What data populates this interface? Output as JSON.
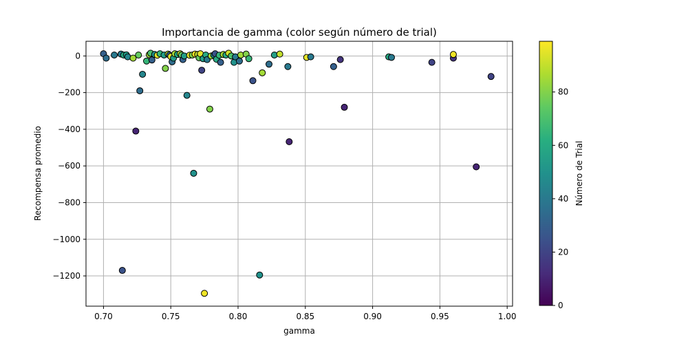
{
  "chart_data": {
    "type": "scatter",
    "title": "Importancia de gamma (color según número de trial)",
    "xlabel": "gamma",
    "ylabel": "Recompensa promedio",
    "xlim": [
      0.687,
      1.004
    ],
    "ylim": [
      -1365,
      80
    ],
    "xticks": [
      0.7,
      0.75,
      0.8,
      0.85,
      0.9,
      0.95,
      1.0
    ],
    "xtick_labels": [
      "0.70",
      "0.75",
      "0.80",
      "0.85",
      "0.90",
      "0.95",
      "1.00"
    ],
    "yticks": [
      0,
      -200,
      -400,
      -600,
      -800,
      -1000,
      -1200
    ],
    "ytick_labels": [
      "0",
      "−200",
      "−400",
      "−600",
      "−800",
      "−1000",
      "−1200"
    ],
    "grid": true,
    "colormap": "viridis",
    "colorbar": {
      "label": "Número de Trial",
      "range": [
        0,
        99
      ],
      "ticks": [
        0,
        20,
        40,
        60,
        80
      ],
      "tick_labels": [
        "0",
        "20",
        "40",
        "60",
        "80"
      ]
    },
    "points": [
      {
        "x": 0.7,
        "y": 12,
        "trial": 30
      },
      {
        "x": 0.702,
        "y": -12,
        "trial": 35
      },
      {
        "x": 0.708,
        "y": 5,
        "trial": 40
      },
      {
        "x": 0.713,
        "y": 10,
        "trial": 40
      },
      {
        "x": 0.714,
        "y": -1170,
        "trial": 25
      },
      {
        "x": 0.715,
        "y": 5,
        "trial": 60
      },
      {
        "x": 0.717,
        "y": 6,
        "trial": 55
      },
      {
        "x": 0.718,
        "y": -5,
        "trial": 45
      },
      {
        "x": 0.722,
        "y": -12,
        "trial": 85
      },
      {
        "x": 0.724,
        "y": -410,
        "trial": 10
      },
      {
        "x": 0.726,
        "y": 5,
        "trial": 75
      },
      {
        "x": 0.727,
        "y": -190,
        "trial": 35
      },
      {
        "x": 0.729,
        "y": -100,
        "trial": 45
      },
      {
        "x": 0.732,
        "y": -28,
        "trial": 65
      },
      {
        "x": 0.734,
        "y": 7,
        "trial": 85
      },
      {
        "x": 0.735,
        "y": 15,
        "trial": 70
      },
      {
        "x": 0.736,
        "y": -22,
        "trial": 30
      },
      {
        "x": 0.738,
        "y": 8,
        "trial": 50
      },
      {
        "x": 0.74,
        "y": 4,
        "trial": 95
      },
      {
        "x": 0.742,
        "y": 12,
        "trial": 65
      },
      {
        "x": 0.745,
        "y": 5,
        "trial": 55
      },
      {
        "x": 0.746,
        "y": -68,
        "trial": 80
      },
      {
        "x": 0.748,
        "y": 10,
        "trial": 90
      },
      {
        "x": 0.749,
        "y": 5,
        "trial": 30
      },
      {
        "x": 0.75,
        "y": -3,
        "trial": 95
      },
      {
        "x": 0.751,
        "y": -32,
        "trial": 35
      },
      {
        "x": 0.752,
        "y": -12,
        "trial": 55
      },
      {
        "x": 0.753,
        "y": 12,
        "trial": 85
      },
      {
        "x": 0.755,
        "y": 8,
        "trial": 60
      },
      {
        "x": 0.757,
        "y": 12,
        "trial": 90
      },
      {
        "x": 0.758,
        "y": 5,
        "trial": 75
      },
      {
        "x": 0.759,
        "y": -20,
        "trial": 30
      },
      {
        "x": 0.76,
        "y": 0,
        "trial": 55
      },
      {
        "x": 0.762,
        "y": -215,
        "trial": 45
      },
      {
        "x": 0.764,
        "y": 4,
        "trial": 95
      },
      {
        "x": 0.766,
        "y": 5,
        "trial": 80
      },
      {
        "x": 0.767,
        "y": -640,
        "trial": 50
      },
      {
        "x": 0.768,
        "y": 10,
        "trial": 98
      },
      {
        "x": 0.77,
        "y": 8,
        "trial": 90
      },
      {
        "x": 0.771,
        "y": -10,
        "trial": 75
      },
      {
        "x": 0.772,
        "y": 12,
        "trial": 95
      },
      {
        "x": 0.773,
        "y": -78,
        "trial": 20
      },
      {
        "x": 0.774,
        "y": -15,
        "trial": 55
      },
      {
        "x": 0.775,
        "y": -1295,
        "trial": 97
      },
      {
        "x": 0.776,
        "y": 5,
        "trial": 60
      },
      {
        "x": 0.777,
        "y": -20,
        "trial": 40
      },
      {
        "x": 0.779,
        "y": -290,
        "trial": 80
      },
      {
        "x": 0.78,
        "y": 0,
        "trial": 85
      },
      {
        "x": 0.782,
        "y": 5,
        "trial": 50
      },
      {
        "x": 0.783,
        "y": 12,
        "trial": 25
      },
      {
        "x": 0.784,
        "y": -18,
        "trial": 60
      },
      {
        "x": 0.786,
        "y": 4,
        "trial": 65
      },
      {
        "x": 0.787,
        "y": -35,
        "trial": 30
      },
      {
        "x": 0.789,
        "y": 8,
        "trial": 85
      },
      {
        "x": 0.791,
        "y": 5,
        "trial": 60
      },
      {
        "x": 0.793,
        "y": 15,
        "trial": 92
      },
      {
        "x": 0.795,
        "y": 0,
        "trial": 70
      },
      {
        "x": 0.797,
        "y": -35,
        "trial": 50
      },
      {
        "x": 0.798,
        "y": -5,
        "trial": 40
      },
      {
        "x": 0.801,
        "y": -28,
        "trial": 35
      },
      {
        "x": 0.802,
        "y": 5,
        "trial": 85
      },
      {
        "x": 0.806,
        "y": 10,
        "trial": 80
      },
      {
        "x": 0.808,
        "y": -15,
        "trial": 65
      },
      {
        "x": 0.811,
        "y": -135,
        "trial": 25
      },
      {
        "x": 0.816,
        "y": -1195,
        "trial": 50
      },
      {
        "x": 0.818,
        "y": -92,
        "trial": 85
      },
      {
        "x": 0.823,
        "y": -45,
        "trial": 35
      },
      {
        "x": 0.827,
        "y": 5,
        "trial": 55
      },
      {
        "x": 0.831,
        "y": 10,
        "trial": 90
      },
      {
        "x": 0.837,
        "y": -58,
        "trial": 40
      },
      {
        "x": 0.838,
        "y": -468,
        "trial": 10
      },
      {
        "x": 0.851,
        "y": -8,
        "trial": 95
      },
      {
        "x": 0.854,
        "y": -5,
        "trial": 40
      },
      {
        "x": 0.871,
        "y": -58,
        "trial": 30
      },
      {
        "x": 0.876,
        "y": -20,
        "trial": 15
      },
      {
        "x": 0.879,
        "y": -280,
        "trial": 10
      },
      {
        "x": 0.912,
        "y": -5,
        "trial": 60
      },
      {
        "x": 0.914,
        "y": -8,
        "trial": 40
      },
      {
        "x": 0.944,
        "y": -35,
        "trial": 20
      },
      {
        "x": 0.96,
        "y": -12,
        "trial": 15
      },
      {
        "x": 0.96,
        "y": 8,
        "trial": 97
      },
      {
        "x": 0.977,
        "y": -605,
        "trial": 10
      },
      {
        "x": 0.988,
        "y": -112,
        "trial": 20
      }
    ]
  }
}
